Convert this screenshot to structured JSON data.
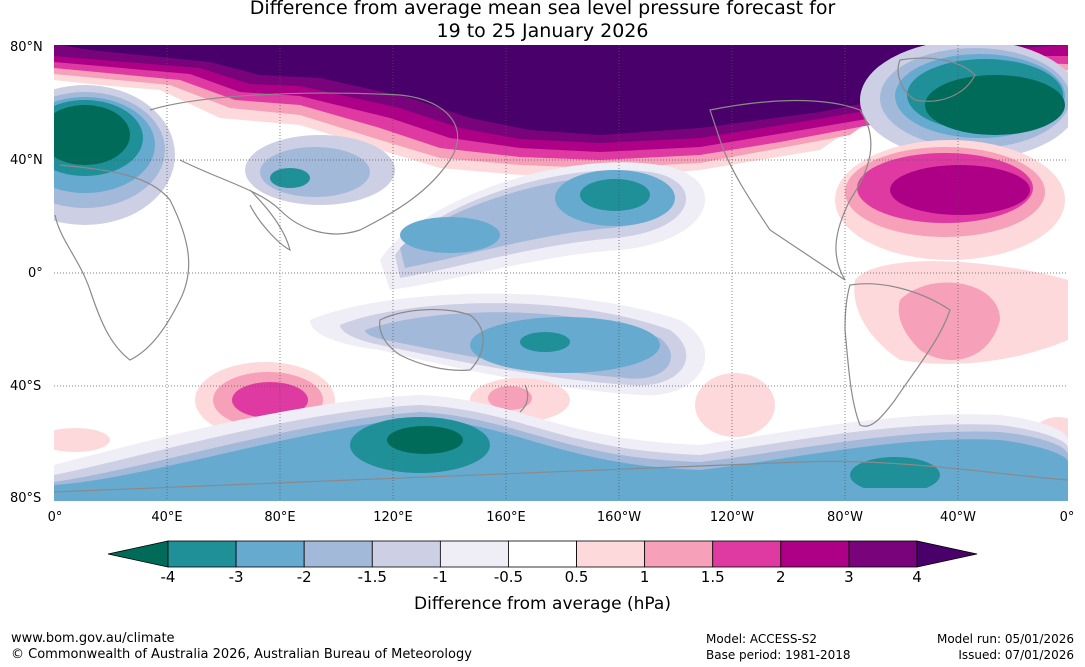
{
  "title": {
    "line1": "Difference from average mean sea level pressure forecast for",
    "line2": "19 to 25 January 2026"
  },
  "map": {
    "latitude_labels": [
      "80°N",
      "40°N",
      "0°",
      "40°S",
      "80°S"
    ],
    "longitude_labels": [
      "0°",
      "40°E",
      "80°E",
      "120°E",
      "160°E",
      "160°W",
      "120°W",
      "80°W",
      "40°W",
      "0°"
    ],
    "land_outline_color": "#8a8a8a",
    "grid": "dotted"
  },
  "colorbar": {
    "title": "Difference from average (hPa)",
    "tick_labels": [
      "-4",
      "-3",
      "-2",
      "-1.5",
      "-1",
      "-0.5",
      "0.5",
      "1",
      "1.5",
      "2",
      "3",
      "4"
    ],
    "colors": {
      "below_-4": "#016b5a",
      "-4_-3": "#1f8f98",
      "-3_-2": "#66aad0",
      "-2_-1.5": "#a3b9da",
      "-1.5_-1": "#cdcfe4",
      "-1_-0.5": "#efedf5",
      "-0.5_0.5": "#ffffff",
      "0.5_1": "#fdd9dc",
      "1_1.5": "#f7a0b9",
      "1.5_2": "#de3aa1",
      "2_3": "#ad0086",
      "3_4": "#79037a",
      "above_4": "#49006a"
    }
  },
  "footer": {
    "website": "www.bom.gov.au/climate",
    "copyright": "© Commonwealth of Australia 2026, Australian Bureau of Meteorology",
    "model": "Model: ACCESS-S2",
    "base_period": "Base period: 1981-2018",
    "model_run": "Model run: 05/01/2026",
    "issued": "Issued: 07/01/2026"
  }
}
